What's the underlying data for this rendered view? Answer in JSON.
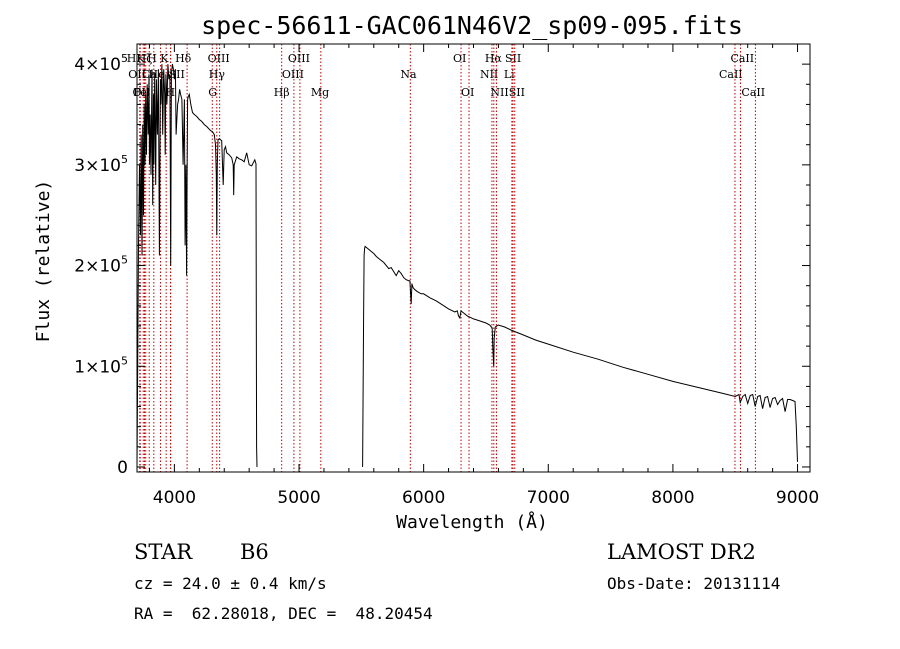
{
  "chart_data": {
    "type": "line",
    "title": "spec-56611-GAC061N46V2_sp09-095.fits",
    "xlabel": "Wavelength (Å)",
    "ylabel": "Flux (relative)",
    "xlim": [
      3700,
      9100
    ],
    "ylim": [
      -5000,
      420000
    ],
    "grid": false,
    "xticks": [
      {
        "value": 4000,
        "label": "4000"
      },
      {
        "value": 5000,
        "label": "5000"
      },
      {
        "value": 6000,
        "label": "6000"
      },
      {
        "value": 7000,
        "label": "7000"
      },
      {
        "value": 8000,
        "label": "8000"
      },
      {
        "value": 9000,
        "label": "9000"
      }
    ],
    "yticks": [
      {
        "value": 0,
        "mant": "0",
        "exp": ""
      },
      {
        "value": 100000,
        "mant": "1×10",
        "exp": "5"
      },
      {
        "value": 200000,
        "mant": "2×10",
        "exp": "5"
      },
      {
        "value": 300000,
        "mant": "3×10",
        "exp": "5"
      },
      {
        "value": 400000,
        "mant": "4×10",
        "exp": "5"
      }
    ],
    "series": [
      {
        "color": "#000000",
        "x": [
          3700,
          3712,
          3720,
          3728,
          3734,
          3740,
          3746,
          3752,
          3758,
          3764,
          3770,
          3776,
          3782,
          3790,
          3796,
          3800,
          3806,
          3812,
          3820,
          3826,
          3832,
          3836,
          3842,
          3850,
          3856,
          3864,
          3872,
          3880,
          3888,
          3892,
          3900,
          3906,
          3914,
          3922,
          3926,
          3932,
          3940,
          3948,
          3956,
          3964,
          3970,
          3976,
          3984,
          3992,
          4000,
          4008,
          4014,
          4026,
          4034,
          4042,
          4050,
          4060,
          4070,
          4080,
          4086,
          4092,
          4098,
          4102,
          4106,
          4112,
          4120,
          4132,
          4145,
          4160,
          4180,
          4200,
          4220,
          4240,
          4260,
          4275,
          4290,
          4305,
          4320,
          4330,
          4336,
          4340,
          4344,
          4350,
          4360,
          4380,
          4392,
          4400,
          4410,
          4420,
          4440,
          4460,
          4472,
          4476,
          4480,
          4500,
          4520,
          4540,
          4560,
          4580,
          4600,
          4620,
          4645,
          4655,
          4658,
          4660,
          4663
        ],
        "y": [
          0,
          220000,
          300000,
          230000,
          330000,
          210000,
          340000,
          250000,
          360000,
          300000,
          370000,
          310000,
          380000,
          330000,
          390000,
          300000,
          350000,
          290000,
          395000,
          260000,
          370000,
          300000,
          390000,
          280000,
          385000,
          330000,
          395000,
          210000,
          385000,
          360000,
          400000,
          330000,
          395000,
          370000,
          310000,
          390000,
          360000,
          400000,
          385000,
          390000,
          200000,
          390000,
          400000,
          395000,
          385000,
          395000,
          330000,
          360000,
          365000,
          375000,
          370000,
          365000,
          300000,
          365000,
          220000,
          300000,
          190000,
          290000,
          365000,
          368000,
          370000,
          360000,
          352000,
          350000,
          348000,
          345000,
          343000,
          340000,
          338000,
          336000,
          334000,
          333000,
          330000,
          320000,
          290000,
          230000,
          300000,
          325000,
          326000,
          324000,
          280000,
          315000,
          318000,
          312000,
          310000,
          307000,
          300000,
          270000,
          300000,
          308000,
          306000,
          305000,
          303000,
          312000,
          300000,
          299000,
          305000,
          301000,
          100000,
          20000,
          0
        ]
      },
      {
        "color": "#000000",
        "x": [
          5510,
          5518,
          5522,
          5526,
          5530,
          5540,
          5560,
          5580,
          5600,
          5620,
          5650,
          5680,
          5700,
          5720,
          5740,
          5760,
          5780,
          5800,
          5820,
          5840,
          5860,
          5880,
          5890,
          5895,
          5900,
          5906,
          5915,
          5930,
          5950,
          5980,
          6000,
          6050,
          6100,
          6150,
          6200,
          6250,
          6270,
          6280,
          6290,
          6300,
          6320,
          6350,
          6400,
          6450,
          6500,
          6530,
          6550,
          6555,
          6562,
          6566,
          6575,
          6600,
          6650,
          6700,
          6800,
          6900,
          7000,
          7200,
          7400,
          7600,
          7800,
          8000,
          8200,
          8400,
          8500,
          8530,
          8540,
          8560,
          8580,
          8600,
          8620,
          8640,
          8660,
          8680,
          8700,
          8720,
          8740,
          8760,
          8780,
          8800,
          8820,
          8840,
          8860,
          8880,
          8900,
          8920,
          8940,
          8960,
          8980,
          8990,
          9000
        ],
        "y": [
          0,
          150000,
          210000,
          217000,
          219000,
          218000,
          216000,
          214000,
          212000,
          209000,
          206000,
          203000,
          200000,
          197000,
          198000,
          194000,
          190000,
          195000,
          192000,
          188000,
          186000,
          185000,
          185000,
          172000,
          162000,
          182000,
          178000,
          176000,
          174000,
          172000,
          172000,
          168000,
          165000,
          161000,
          157000,
          154000,
          155000,
          150000,
          148000,
          155000,
          153000,
          150000,
          147000,
          145000,
          143000,
          141000,
          138000,
          120000,
          100000,
          128000,
          139000,
          141000,
          139000,
          136000,
          131000,
          126000,
          122000,
          114000,
          107000,
          99000,
          92000,
          85000,
          79000,
          73000,
          70000,
          72000,
          64000,
          70000,
          72000,
          63000,
          71000,
          72000,
          60000,
          70000,
          71000,
          58000,
          69000,
          70000,
          59000,
          68000,
          69000,
          62000,
          66000,
          68000,
          55000,
          67000,
          67000,
          66000,
          65000,
          40000,
          5000
        ]
      }
    ],
    "lines": [
      {
        "x": 3722,
        "row": 1,
        "label": "HK",
        "dx": -13
      },
      {
        "x": 3726,
        "row": 2,
        "label": "OII",
        "dx": -12
      },
      {
        "x": 3750,
        "row": 3,
        "label": "Fe",
        "dx": -10
      },
      {
        "x": 3760,
        "row": 3,
        "label": "OII",
        "dx": -12
      },
      {
        "x": 3770,
        "row": 1,
        "label": "Hζ",
        "dx": -9
      },
      {
        "x": 3798,
        "row": 1,
        "label": "H",
        "dx": -2
      },
      {
        "x": 3835,
        "row": 2,
        "label": "Ca",
        "dx": -12
      },
      {
        "x": 3889,
        "row": 2,
        "label": "He",
        "dx": -12
      },
      {
        "x": 3934,
        "row": 1,
        "label": "K",
        "dx": -6
      },
      {
        "x": 3969,
        "row": 3,
        "label": "H",
        "dx": -5
      },
      {
        "x": 3970,
        "row": 2,
        "label": "SII",
        "dx": -2
      },
      {
        "x": 4102,
        "row": 1,
        "label": "Hδ",
        "dx": -12
      },
      {
        "x": 4304,
        "row": 3,
        "label": "G",
        "dx": -4
      },
      {
        "x": 4340,
        "row": 2,
        "label": "Hγ",
        "dx": -8
      },
      {
        "x": 4363,
        "row": 1,
        "label": "OIII",
        "dx": -12
      },
      {
        "x": 4861,
        "row": 3,
        "label": "Hβ",
        "dx": -8
      },
      {
        "x": 4959,
        "row": 2,
        "label": "OIII",
        "dx": -12
      },
      {
        "x": 5007,
        "row": 1,
        "label": "OIII",
        "dx": -12
      },
      {
        "x": 5175,
        "row": 3,
        "label": "Mg",
        "dx": -10
      },
      {
        "x": 5893,
        "row": 2,
        "label": "Na",
        "dx": -10
      },
      {
        "x": 6300,
        "row": 1,
        "label": "OI",
        "dx": -8
      },
      {
        "x": 6364,
        "row": 3,
        "label": "OI",
        "dx": -8
      },
      {
        "x": 6548,
        "row": 2,
        "label": "NII",
        "dx": -12
      },
      {
        "x": 6563,
        "row": 1,
        "label": "Hα",
        "dx": -9
      },
      {
        "x": 6584,
        "row": 3,
        "label": "NII",
        "dx": -6
      },
      {
        "x": 6708,
        "row": 2,
        "label": "Li",
        "dx": -8
      },
      {
        "x": 6717,
        "row": 1,
        "label": "SII",
        "dx": -8
      },
      {
        "x": 6731,
        "row": 3,
        "label": "SII",
        "dx": -6
      },
      {
        "x": 8498,
        "row": 2,
        "label": "CaII",
        "dx": -16
      },
      {
        "x": 8542,
        "row": 1,
        "label": "CaII",
        "dx": -10
      },
      {
        "x": 8662,
        "row": 3,
        "label": "CaII",
        "dx": -14
      }
    ]
  },
  "info": {
    "object_class": "STAR",
    "subclass": "B6",
    "cz": "cz = 24.0 ± 0.4 km/s",
    "coords": "RA =  62.28018, DEC =  48.20454",
    "survey": "LAMOST DR2",
    "obs_date": "Obs-Date: 20131114"
  }
}
